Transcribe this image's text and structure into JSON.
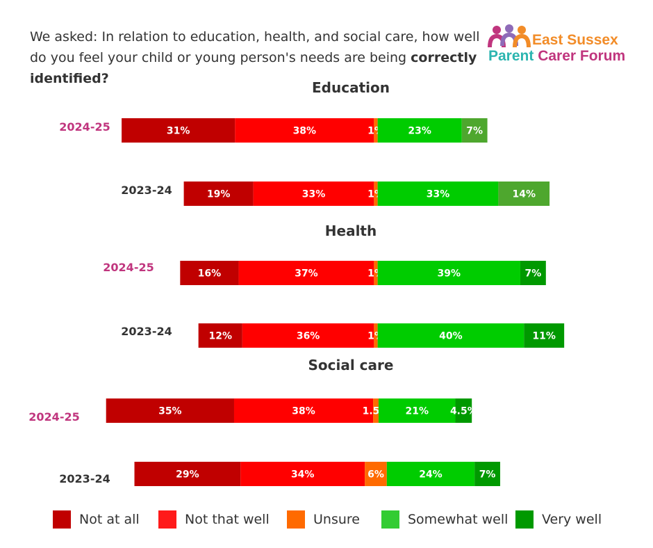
{
  "intro": {
    "text": "We asked: In relation to education, health, and social care, how well do you feel your child or young person's needs are being",
    "bold": "correctly identified?"
  },
  "logo": {
    "line1": "East Sussex",
    "line2_a": "Parent",
    "line2_b": "Carer Forum",
    "colors": {
      "orange": "#f28c28",
      "pink": "#c0357e",
      "teal": "#2cb5b0",
      "purple": "#8e6bb8"
    }
  },
  "chart_data": {
    "type": "bar",
    "orientation": "horizontal-stacked",
    "categories_legend": [
      "Not at all",
      "Not that well",
      "Unsure",
      "Somewhat well",
      "Very well"
    ],
    "colors": [
      "#c00000",
      "#ff0000",
      "#ff6a00",
      "#00cc00",
      "#009900"
    ],
    "legend_colors": [
      "#c00000",
      "#ff1a1a",
      "#ff6a00",
      "#33cc33",
      "#009900"
    ],
    "year_colors": {
      "2024-25": "#c0357e",
      "2023-24": "#333333"
    },
    "groups": [
      {
        "title": "Education",
        "rows": [
          {
            "label": "2024-25",
            "values": [
              31,
              38,
              1,
              23,
              7
            ],
            "labels": [
              "31%",
              "38%",
              "1%",
              "23%",
              "7%"
            ],
            "colors": [
              "#c00000",
              "#ff0000",
              "#ff6a00",
              "#00cc00",
              "#4ea72e"
            ]
          },
          {
            "label": "2023-24",
            "values": [
              19,
              33,
              1,
              33,
              14
            ],
            "labels": [
              "19%",
              "33%",
              "1%",
              "33%",
              "14%"
            ],
            "colors": [
              "#c00000",
              "#ff0000",
              "#ff6a00",
              "#00cc00",
              "#4ea72e"
            ]
          }
        ]
      },
      {
        "title": "Health",
        "rows": [
          {
            "label": "2024-25",
            "values": [
              16,
              37,
              1,
              39,
              7
            ],
            "labels": [
              "16%",
              "37%",
              "1%",
              "39%",
              "7%"
            ]
          },
          {
            "label": "2023-24",
            "values": [
              12,
              36,
              1,
              40,
              11
            ],
            "labels": [
              "12%",
              "36%",
              "1%",
              "40%",
              "11%"
            ]
          }
        ]
      },
      {
        "title": "Social care",
        "rows": [
          {
            "label": "2024-25",
            "values": [
              35,
              38,
              1.5,
              21,
              4.5
            ],
            "labels": [
              "35%",
              "38%",
              "1.5%",
              "21%",
              "4.5%"
            ]
          },
          {
            "label": "2023-24",
            "values": [
              29,
              34,
              6,
              24,
              7
            ],
            "labels": [
              "29%",
              "34%",
              "6%",
              "24%",
              "7%"
            ]
          }
        ]
      }
    ]
  }
}
